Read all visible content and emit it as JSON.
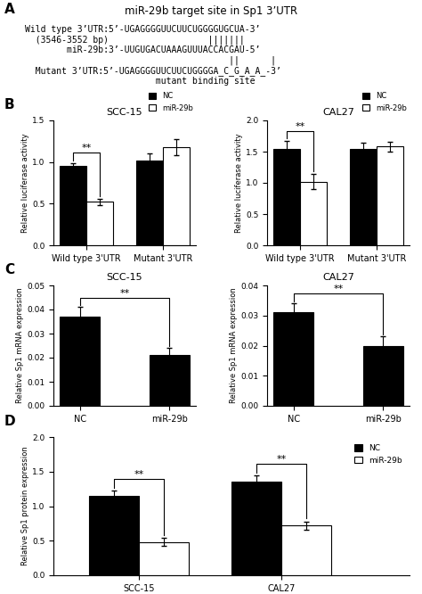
{
  "chart_data": [
    {
      "type": "text",
      "title": "miR-29b target site in Sp1 3’UTR",
      "annotations": [
        {
          "text": "A",
          "position": "corner"
        },
        {
          "text": "Wild type 3’UTR:5’-UGAGGGGUUCUUCUGGGGUGCUA-3’",
          "position": "body"
        },
        {
          "text": "  (3546-3552 bp)                   |||||||",
          "position": "body"
        },
        {
          "text": "        miR-29b:3’-UUGUGACUAAAGUUUACCACGAU-5’",
          "position": "body"
        },
        {
          "text": "                                       ||      |",
          "position": "body"
        },
        {
          "text": "  Mutant 3’UTR:5’-UGAGGGGUUCUUCUGGGGA̲C̲G̲A̲A̲-3’",
          "position": "body"
        },
        {
          "text": "                         mutant binding site",
          "position": "body"
        }
      ]
    },
    {
      "type": "bar",
      "title": "SCC-15",
      "categories": [
        "Wild type 3'UTR",
        "Mutant 3'UTR"
      ],
      "series": [
        {
          "name": "NC",
          "color": "#000000",
          "values": [
            0.95,
            1.02
          ],
          "errors": [
            0.04,
            0.08
          ]
        },
        {
          "name": "miR-29b",
          "color": "#ffffff",
          "values": [
            0.52,
            1.18
          ],
          "errors": [
            0.04,
            0.1
          ]
        }
      ],
      "ylabel": "Relative luciferase activity",
      "ylim": [
        0.0,
        1.5
      ],
      "yticks": [
        {
          "value": 0,
          "label": "0.0"
        },
        0.5,
        {
          "value": 1,
          "label": "1.0"
        },
        1.5
      ],
      "legend": "upper right",
      "annotations": [
        {
          "text": "B",
          "position": "corner"
        },
        {
          "text": "**",
          "categories": [
            "Wild type 3'UTR"
          ]
        }
      ]
    },
    {
      "type": "bar",
      "title": "CAL27",
      "categories": [
        "Wild type 3'UTR",
        "Mutant 3'UTR"
      ],
      "series": [
        {
          "name": "NC",
          "color": "#000000",
          "values": [
            1.55,
            1.55
          ],
          "errors": [
            0.12,
            0.1
          ]
        },
        {
          "name": "miR-29b",
          "color": "#ffffff",
          "values": [
            1.02,
            1.58
          ],
          "errors": [
            0.12,
            0.08
          ]
        }
      ],
      "ylabel": "Relative luciferase activity",
      "ylim": [
        0.0,
        2.0
      ],
      "yticks": [
        {
          "value": 0,
          "label": "0.0"
        },
        0.5,
        {
          "value": 1,
          "label": "1.0"
        },
        1.5,
        {
          "value": 2,
          "label": "2.0"
        }
      ],
      "legend": "upper right",
      "annotations": [
        {
          "text": "**",
          "categories": [
            "Wild type 3'UTR"
          ]
        }
      ]
    },
    {
      "type": "bar",
      "title": "SCC-15",
      "categories": [
        "NC",
        "miR-29b"
      ],
      "series": [
        {
          "color": "#000000",
          "values": [
            0.037,
            0.021
          ],
          "errors": [
            0.004,
            0.003
          ]
        }
      ],
      "ylabel": "Relative Sp1 mRNA expression",
      "ylim": [
        0.0,
        0.05
      ],
      "yticks": [
        {
          "value": 0,
          "label": "0.00"
        },
        0.01,
        0.02,
        0.03,
        0.04,
        0.05
      ],
      "annotations": [
        {
          "text": "C",
          "position": "corner"
        },
        {
          "text": "**",
          "categories": [
            "NC",
            "miR-29b"
          ]
        }
      ]
    },
    {
      "type": "bar",
      "title": "CAL27",
      "categories": [
        "NC",
        "miR-29b"
      ],
      "series": [
        {
          "color": "#000000",
          "values": [
            0.031,
            0.02
          ],
          "errors": [
            0.003,
            0.003
          ]
        }
      ],
      "ylabel": "Relative Sp1 mRNA expression",
      "ylim": [
        0.0,
        0.04
      ],
      "yticks": [
        {
          "value": 0,
          "label": "0.00"
        },
        0.01,
        0.02,
        0.03,
        0.04
      ],
      "annotations": [
        {
          "text": "**",
          "categories": [
            "NC",
            "miR-29b"
          ]
        }
      ]
    },
    {
      "type": "bar",
      "categories": [
        "SCC-15",
        "CAL27"
      ],
      "series": [
        {
          "name": "NC",
          "color": "#000000",
          "values": [
            1.15,
            1.35
          ],
          "errors": [
            0.08,
            0.1
          ]
        },
        {
          "name": "miR-29b",
          "color": "#ffffff",
          "values": [
            0.48,
            0.72
          ],
          "errors": [
            0.06,
            0.06
          ]
        }
      ],
      "ylabel": "Relative Sp1 protein expression",
      "ylim": [
        0.0,
        2.0
      ],
      "yticks": [
        {
          "value": 0,
          "label": "0.0"
        },
        0.5,
        {
          "value": 1,
          "label": "1.0"
        },
        1.5,
        {
          "value": 2,
          "label": "2.0"
        }
      ],
      "legend": "upper right",
      "annotations": [
        {
          "text": "D",
          "position": "corner"
        },
        {
          "text": "**",
          "categories": [
            "SCC-15"
          ]
        },
        {
          "text": "**",
          "categories": [
            "CAL27"
          ]
        }
      ]
    }
  ]
}
